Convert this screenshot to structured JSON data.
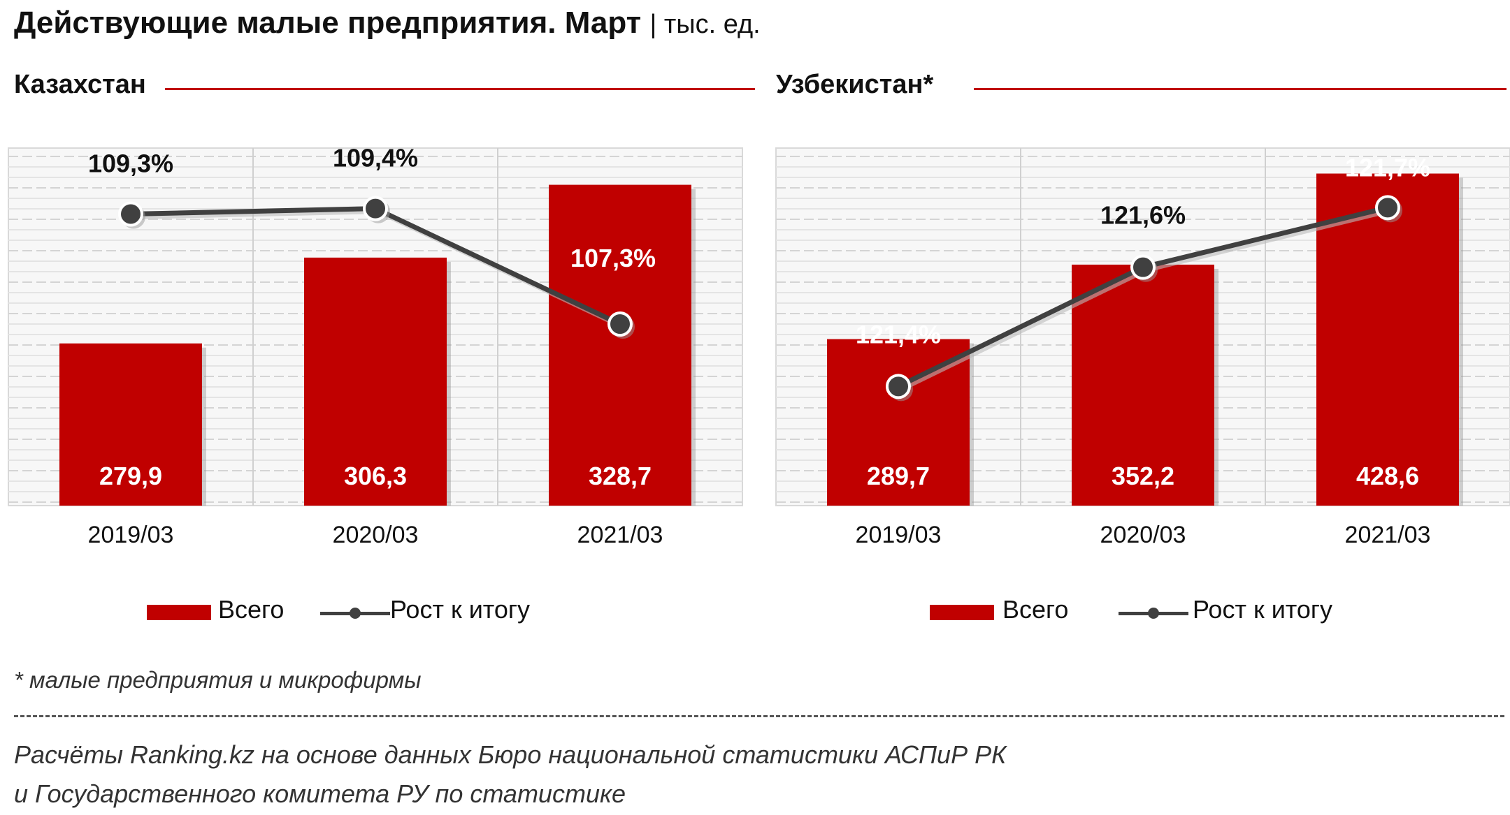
{
  "title": "Действующие малые предприятия. Март",
  "unit": "| тыс. ед.",
  "legend": {
    "bar_label": "Всего",
    "line_label": "Рост к итогу"
  },
  "colors": {
    "bar": "#c00000",
    "line": "#404040",
    "grid": "#d9d9d9",
    "rule": "#c00000"
  },
  "footnote": "* малые предприятия и микрофирмы",
  "source_line1": "Расчёты Ranking.kz на основе данных  Бюро национальной  статистики АСПиР РК",
  "source_line2": "и Государственного  комитета РУ по статистике",
  "chart_data": [
    {
      "type": "bar+line",
      "panel_title": "Казахстан",
      "categories": [
        "2019/03",
        "2020/03",
        "2021/03"
      ],
      "series": [
        {
          "name": "Всего",
          "type": "bar",
          "values": [
            279.9,
            306.3,
            328.7
          ],
          "labels": [
            "279,9",
            "306,3",
            "328,7"
          ]
        },
        {
          "name": "Рост к итогу",
          "type": "line",
          "values": [
            109.3,
            109.4,
            107.3
          ],
          "labels": [
            "109,3%",
            "109,4%",
            "107,3%"
          ]
        }
      ],
      "bar_ylim": [
        230,
        340
      ],
      "line_ylim": [
        104,
        110.5
      ],
      "grid": true,
      "legend_position": "bottom"
    },
    {
      "type": "bar+line",
      "panel_title": "Узбекистан*",
      "categories": [
        "2019/03",
        "2020/03",
        "2021/03"
      ],
      "series": [
        {
          "name": "Всего",
          "type": "bar",
          "values": [
            289.7,
            352.2,
            428.6
          ],
          "labels": [
            "289,7",
            "352,2",
            "428,6"
          ]
        },
        {
          "name": "Рост к итогу",
          "type": "line",
          "values": [
            121.4,
            121.6,
            121.7
          ],
          "labels": [
            "121,4%",
            "121,6%",
            "121,7%"
          ]
        }
      ],
      "bar_ylim": [
        150,
        450
      ],
      "line_ylim": [
        121.2,
        121.8
      ],
      "grid": true,
      "legend_position": "bottom"
    }
  ]
}
